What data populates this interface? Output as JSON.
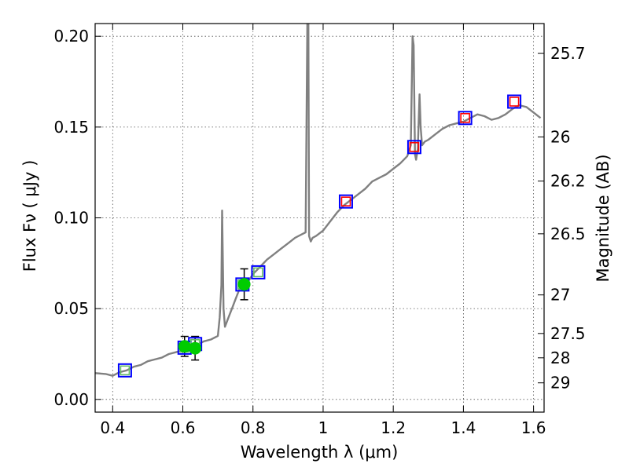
{
  "chart_data": {
    "type": "scatter",
    "title": "",
    "xlabel": "Wavelength  λ (μm)",
    "ylabel": "Flux  Fν  ( μJy )",
    "y2label": "Magnitude (AB)",
    "xlim": [
      0.35,
      1.63
    ],
    "ylim": [
      -0.007,
      0.207
    ],
    "grid": true,
    "xticks": [
      0.4,
      0.6,
      0.8,
      1.0,
      1.2,
      1.4,
      1.6
    ],
    "xtick_labels": [
      "0.4",
      "0.6",
      "0.8",
      "1",
      "1.2",
      "1.4",
      "1.6"
    ],
    "yticks": [
      0.0,
      0.05,
      0.1,
      0.15,
      0.2
    ],
    "ytick_labels": [
      "0.00",
      "0.05",
      "0.10",
      "0.15",
      "0.20"
    ],
    "right_ticks": [
      {
        "label": "25.7",
        "mag": 25.7
      },
      {
        "label": "26",
        "mag": 26.0
      },
      {
        "label": "26.2",
        "mag": 26.2
      },
      {
        "label": "26.5",
        "mag": 26.5
      },
      {
        "label": "27",
        "mag": 27.0
      },
      {
        "label": "27.5",
        "mag": 27.5
      },
      {
        "label": "28",
        "mag": 28.0
      },
      {
        "label": "29",
        "mag": 29.0
      }
    ],
    "spectrum": {
      "color": "#808080",
      "x": [
        0.35,
        0.38,
        0.4,
        0.42,
        0.44,
        0.46,
        0.48,
        0.5,
        0.52,
        0.54,
        0.56,
        0.58,
        0.6,
        0.62,
        0.64,
        0.66,
        0.68,
        0.7,
        0.705,
        0.71,
        0.712,
        0.716,
        0.72,
        0.73,
        0.74,
        0.75,
        0.76,
        0.77,
        0.78,
        0.79,
        0.8,
        0.82,
        0.84,
        0.86,
        0.88,
        0.9,
        0.92,
        0.94,
        0.95,
        0.955,
        0.958,
        0.96,
        0.965,
        0.97,
        0.98,
        1.0,
        1.02,
        1.04,
        1.06,
        1.08,
        1.1,
        1.12,
        1.14,
        1.16,
        1.18,
        1.2,
        1.22,
        1.24,
        1.25,
        1.255,
        1.258,
        1.262,
        1.265,
        1.27,
        1.275,
        1.278,
        1.282,
        1.29,
        1.3,
        1.32,
        1.34,
        1.36,
        1.38,
        1.4,
        1.42,
        1.44,
        1.46,
        1.48,
        1.5,
        1.52,
        1.54,
        1.56,
        1.58,
        1.6,
        1.62
      ],
      "y": [
        0.0145,
        0.014,
        0.013,
        0.015,
        0.016,
        0.018,
        0.019,
        0.021,
        0.022,
        0.023,
        0.025,
        0.026,
        0.027,
        0.028,
        0.03,
        0.032,
        0.033,
        0.035,
        0.045,
        0.063,
        0.104,
        0.05,
        0.04,
        0.045,
        0.05,
        0.055,
        0.06,
        0.063,
        0.064,
        0.066,
        0.069,
        0.073,
        0.077,
        0.08,
        0.083,
        0.086,
        0.089,
        0.091,
        0.092,
        0.208,
        0.208,
        0.09,
        0.087,
        0.089,
        0.09,
        0.093,
        0.098,
        0.103,
        0.107,
        0.11,
        0.113,
        0.116,
        0.12,
        0.122,
        0.124,
        0.127,
        0.13,
        0.134,
        0.14,
        0.2,
        0.195,
        0.135,
        0.132,
        0.138,
        0.168,
        0.15,
        0.14,
        0.142,
        0.143,
        0.146,
        0.149,
        0.151,
        0.152,
        0.153,
        0.155,
        0.157,
        0.156,
        0.154,
        0.155,
        0.157,
        0.16,
        0.162,
        0.161,
        0.158,
        0.155
      ]
    },
    "photometry": [
      {
        "x": 0.605,
        "y": 0.0292,
        "yerr": 0.0055
      },
      {
        "x": 0.635,
        "y": 0.0282,
        "yerr": 0.0065
      },
      {
        "x": 0.775,
        "y": 0.0634,
        "yerr": 0.0085
      }
    ],
    "model_squares_green": [
      {
        "x": 0.435,
        "y": 0.016
      },
      {
        "x": 0.605,
        "y": 0.0285
      },
      {
        "x": 0.635,
        "y": 0.0305
      },
      {
        "x": 0.77,
        "y": 0.0633
      },
      {
        "x": 0.815,
        "y": 0.07
      }
    ],
    "model_squares_red": [
      {
        "x": 1.065,
        "y": 0.109
      },
      {
        "x": 1.26,
        "y": 0.139
      },
      {
        "x": 1.405,
        "y": 0.155
      },
      {
        "x": 1.545,
        "y": 0.164
      }
    ],
    "colors": {
      "spectrum": "#808080",
      "point": "#00cc00",
      "square_outer": "#0000ff",
      "square_inner_green": "#66bb66",
      "square_inner_red": "#ff0000",
      "errorbar": "#000000"
    }
  }
}
